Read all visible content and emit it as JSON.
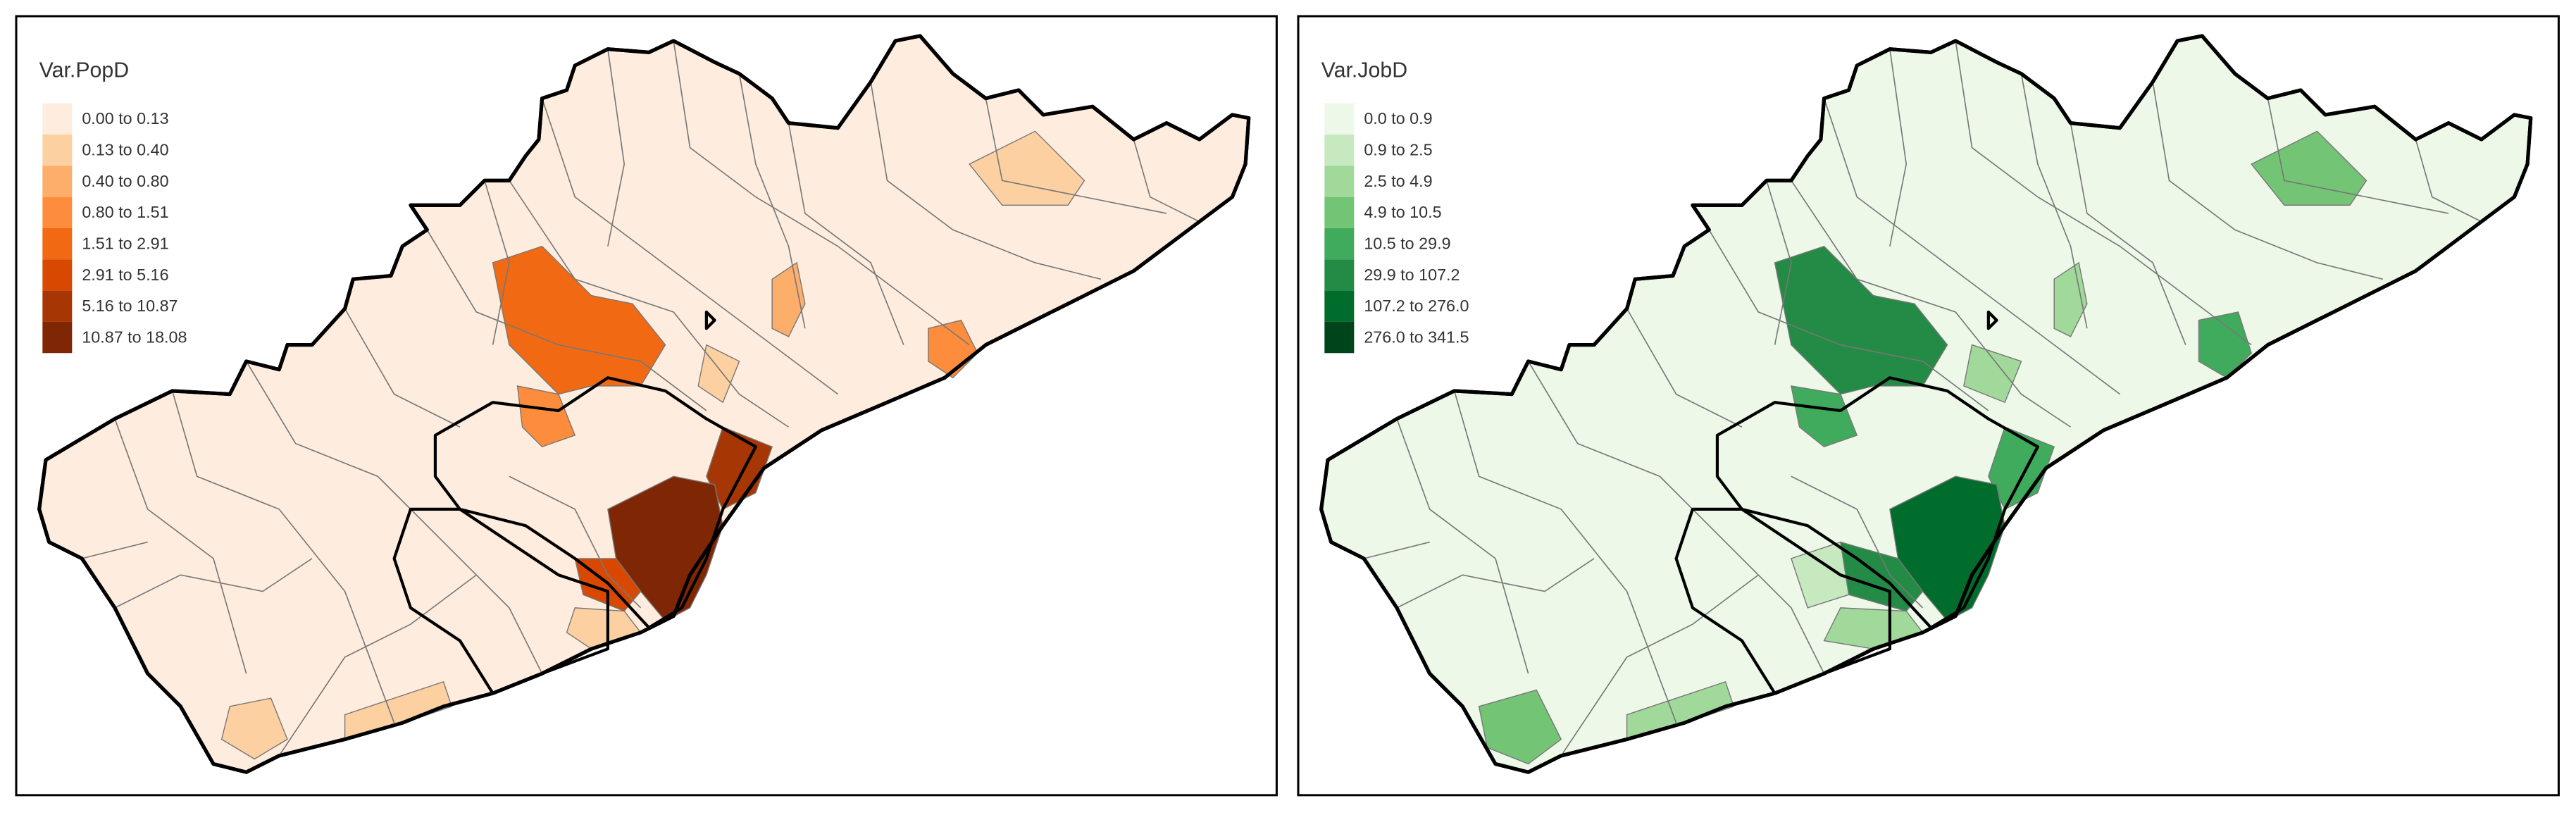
{
  "panels": [
    {
      "legend_title": "Var.PopD",
      "classes": [
        {
          "label": "0.00 to 0.13",
          "color": "#feedde"
        },
        {
          "label": "0.13 to 0.40",
          "color": "#fdd0a2"
        },
        {
          "label": "0.40 to 0.80",
          "color": "#fdae6b"
        },
        {
          "label": "0.80 to 1.51",
          "color": "#fd8d3c"
        },
        {
          "label": "1.51 to 2.91",
          "color": "#f16913"
        },
        {
          "label": "2.91 to 5.16",
          "color": "#d94801"
        },
        {
          "label": "5.16 to 10.87",
          "color": "#a63603"
        },
        {
          "label": "10.87 to 18.08",
          "color": "#7f2704"
        }
      ]
    },
    {
      "legend_title": "Var.JobD",
      "classes": [
        {
          "label": "0.0 to 0.9",
          "color": "#edf8e9"
        },
        {
          "label": "0.9 to 2.5",
          "color": "#c7e9c0"
        },
        {
          "label": "2.5 to 4.9",
          "color": "#a1d99b"
        },
        {
          "label": "4.9 to 10.5",
          "color": "#74c476"
        },
        {
          "label": "10.5 to 29.9",
          "color": "#41ab5d"
        },
        {
          "label": "29.9 to 107.2",
          "color": "#238b45"
        },
        {
          "label": "107.2 to 276.0",
          "color": "#006d2c"
        },
        {
          "label": "276.0 to 341.5",
          "color": "#00441b"
        }
      ]
    }
  ]
}
